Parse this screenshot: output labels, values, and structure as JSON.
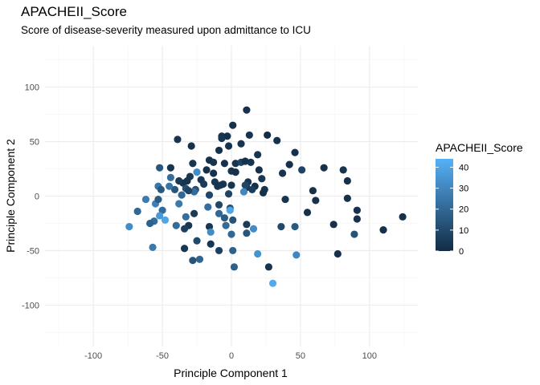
{
  "chart_data": {
    "type": "scatter",
    "title": "APACHEII_Score",
    "subtitle": "Score of disease-severity measured upon admittance to ICU",
    "xlabel": "Principle Component 1",
    "ylabel": "Principle Component 2",
    "xlim": [
      -135,
      135
    ],
    "ylim": [
      -138,
      138
    ],
    "x_ticks": [
      -100,
      -50,
      0,
      50,
      100
    ],
    "y_ticks": [
      -100,
      -50,
      0,
      50,
      100
    ],
    "x_tick_labels": [
      "-100",
      "-50",
      "0",
      "50",
      "100"
    ],
    "y_tick_labels": [
      "-100",
      "-50",
      "0",
      "50",
      "100"
    ],
    "grid": true,
    "legend": {
      "title": "APACHEII_Score",
      "position": "right",
      "type": "colorbar",
      "range": [
        0,
        44
      ],
      "ticks": [
        0,
        10,
        20,
        30,
        40
      ],
      "tick_labels": [
        "0",
        "10",
        "20",
        "30",
        "40"
      ],
      "low_color": "#132B43",
      "high_color": "#56B1F7"
    },
    "points": [
      {
        "x": 11,
        "y": 79,
        "v": 2
      },
      {
        "x": 1,
        "y": 65,
        "v": 2
      },
      {
        "x": 13,
        "y": 56,
        "v": 3
      },
      {
        "x": -7,
        "y": 55,
        "v": 3
      },
      {
        "x": -3,
        "y": 55,
        "v": 2
      },
      {
        "x": -7,
        "y": 53,
        "v": 3
      },
      {
        "x": 26,
        "y": 56,
        "v": 1
      },
      {
        "x": 33,
        "y": 51,
        "v": 2
      },
      {
        "x": -39,
        "y": 52,
        "v": 3
      },
      {
        "x": -29,
        "y": 46,
        "v": 2
      },
      {
        "x": 7,
        "y": 48,
        "v": 3
      },
      {
        "x": -9,
        "y": 42,
        "v": 2
      },
      {
        "x": -2,
        "y": 46,
        "v": 2
      },
      {
        "x": 46,
        "y": 40,
        "v": 2
      },
      {
        "x": 19,
        "y": 38,
        "v": 3
      },
      {
        "x": -16,
        "y": 33,
        "v": 2
      },
      {
        "x": -13,
        "y": 31,
        "v": 3
      },
      {
        "x": -28,
        "y": 30,
        "v": 3
      },
      {
        "x": -5,
        "y": 30,
        "v": 2
      },
      {
        "x": 3,
        "y": 30,
        "v": 3
      },
      {
        "x": 7,
        "y": 31,
        "v": 8
      },
      {
        "x": 10,
        "y": 32,
        "v": 2
      },
      {
        "x": 14,
        "y": 31,
        "v": 3
      },
      {
        "x": 42,
        "y": 29,
        "v": 2
      },
      {
        "x": 67,
        "y": 26,
        "v": 2
      },
      {
        "x": 81,
        "y": 24,
        "v": 3
      },
      {
        "x": 51,
        "y": 24,
        "v": 8
      },
      {
        "x": -44,
        "y": 26,
        "v": 3
      },
      {
        "x": -25,
        "y": 22,
        "v": 32
      },
      {
        "x": -44,
        "y": 17,
        "v": 22
      },
      {
        "x": -52,
        "y": 26,
        "v": 14
      },
      {
        "x": -18,
        "y": 24,
        "v": 2
      },
      {
        "x": -13,
        "y": 21,
        "v": 2
      },
      {
        "x": 0,
        "y": 23,
        "v": 3
      },
      {
        "x": 3,
        "y": 22,
        "v": 2
      },
      {
        "x": 20,
        "y": 24,
        "v": 2
      },
      {
        "x": 37,
        "y": 21,
        "v": 3
      },
      {
        "x": -30,
        "y": 18,
        "v": 4
      },
      {
        "x": -35,
        "y": 12,
        "v": 3
      },
      {
        "x": -38,
        "y": 14,
        "v": 5
      },
      {
        "x": -32,
        "y": 14,
        "v": 3
      },
      {
        "x": -22,
        "y": 15,
        "v": 4
      },
      {
        "x": -12,
        "y": 13,
        "v": 4
      },
      {
        "x": -10,
        "y": 9,
        "v": 3
      },
      {
        "x": -6,
        "y": 11,
        "v": 4
      },
      {
        "x": 12,
        "y": 13,
        "v": 4
      },
      {
        "x": 22,
        "y": 16,
        "v": 4
      },
      {
        "x": 11,
        "y": 8,
        "v": 3
      },
      {
        "x": 17,
        "y": 9,
        "v": 2
      },
      {
        "x": -20,
        "y": 11,
        "v": 5
      },
      {
        "x": 24,
        "y": 6,
        "v": 3
      },
      {
        "x": 84,
        "y": 14,
        "v": 2
      },
      {
        "x": -41,
        "y": 6,
        "v": 14
      },
      {
        "x": -33,
        "y": 7,
        "v": 12
      },
      {
        "x": -26,
        "y": 6,
        "v": 12
      },
      {
        "x": -53,
        "y": 9,
        "v": 25
      },
      {
        "x": -45,
        "y": 9,
        "v": 24
      },
      {
        "x": -51,
        "y": 6,
        "v": 15
      },
      {
        "x": -8,
        "y": 10,
        "v": 3
      },
      {
        "x": 0,
        "y": 10,
        "v": 3
      },
      {
        "x": 10,
        "y": 10,
        "v": 9
      },
      {
        "x": 15,
        "y": 6,
        "v": 6
      },
      {
        "x": -36,
        "y": 1,
        "v": 20
      },
      {
        "x": -27,
        "y": 4,
        "v": 21
      },
      {
        "x": -16,
        "y": 1,
        "v": 9
      },
      {
        "x": -31,
        "y": 5,
        "v": 8
      },
      {
        "x": -2,
        "y": 2,
        "v": 8
      },
      {
        "x": 9,
        "y": 4,
        "v": 30
      },
      {
        "x": 23,
        "y": 3,
        "v": 2
      },
      {
        "x": 59,
        "y": 5,
        "v": 2
      },
      {
        "x": 39,
        "y": -3,
        "v": 3
      },
      {
        "x": -62,
        "y": -3,
        "v": 27
      },
      {
        "x": -55,
        "y": -7,
        "v": 28
      },
      {
        "x": -38,
        "y": -7,
        "v": 26
      },
      {
        "x": -9,
        "y": -8,
        "v": 9
      },
      {
        "x": 61,
        "y": -4,
        "v": 2
      },
      {
        "x": 84,
        "y": -2,
        "v": 2
      },
      {
        "x": -53,
        "y": -3,
        "v": 16
      },
      {
        "x": -50,
        "y": -13,
        "v": 21
      },
      {
        "x": -17,
        "y": -10,
        "v": 22
      },
      {
        "x": -1,
        "y": -11,
        "v": 12
      },
      {
        "x": -52,
        "y": -18,
        "v": 36
      },
      {
        "x": -68,
        "y": -14,
        "v": 20
      },
      {
        "x": -27,
        "y": -16,
        "v": 5
      },
      {
        "x": -33,
        "y": -19,
        "v": 22
      },
      {
        "x": -9,
        "y": -16,
        "v": 20
      },
      {
        "x": -5,
        "y": -20,
        "v": 16
      },
      {
        "x": -1,
        "y": -13,
        "v": 40
      },
      {
        "x": 1,
        "y": -22,
        "v": 13
      },
      {
        "x": 55,
        "y": -15,
        "v": 2
      },
      {
        "x": 91,
        "y": -13,
        "v": 2
      },
      {
        "x": 91,
        "y": -21,
        "v": 2
      },
      {
        "x": 124,
        "y": -19,
        "v": 2
      },
      {
        "x": -56,
        "y": -23,
        "v": 21
      },
      {
        "x": -59,
        "y": -25,
        "v": 18
      },
      {
        "x": -48,
        "y": -22,
        "v": 40
      },
      {
        "x": -40,
        "y": -27,
        "v": 21
      },
      {
        "x": -31,
        "y": -27,
        "v": 4
      },
      {
        "x": -16,
        "y": -28,
        "v": 4
      },
      {
        "x": -4,
        "y": -27,
        "v": 21
      },
      {
        "x": 11,
        "y": -26,
        "v": 5
      },
      {
        "x": 16,
        "y": -30,
        "v": 32
      },
      {
        "x": 36,
        "y": -28,
        "v": 10
      },
      {
        "x": 46,
        "y": -28,
        "v": 15
      },
      {
        "x": -74,
        "y": -28,
        "v": 32
      },
      {
        "x": -34,
        "y": -30,
        "v": 7
      },
      {
        "x": -15,
        "y": -33,
        "v": 32
      },
      {
        "x": 0,
        "y": -35,
        "v": 20
      },
      {
        "x": 11,
        "y": -34,
        "v": 14
      },
      {
        "x": 74,
        "y": -26,
        "v": 2
      },
      {
        "x": 89,
        "y": -35,
        "v": 13
      },
      {
        "x": 110,
        "y": -31,
        "v": 2
      },
      {
        "x": -25,
        "y": -41,
        "v": 10
      },
      {
        "x": -57,
        "y": -47,
        "v": 26
      },
      {
        "x": -15,
        "y": -44,
        "v": 4
      },
      {
        "x": -34,
        "y": -48,
        "v": 4
      },
      {
        "x": -9,
        "y": -50,
        "v": 7
      },
      {
        "x": 1,
        "y": -50,
        "v": 18
      },
      {
        "x": 19,
        "y": -53,
        "v": 34
      },
      {
        "x": 47,
        "y": -54,
        "v": 30
      },
      {
        "x": 77,
        "y": -53,
        "v": 2
      },
      {
        "x": -28,
        "y": -59,
        "v": 13
      },
      {
        "x": -23,
        "y": -58,
        "v": 19
      },
      {
        "x": 2,
        "y": -65,
        "v": 18
      },
      {
        "x": 27,
        "y": -65,
        "v": 3
      },
      {
        "x": 30,
        "y": -80,
        "v": 42
      }
    ]
  }
}
